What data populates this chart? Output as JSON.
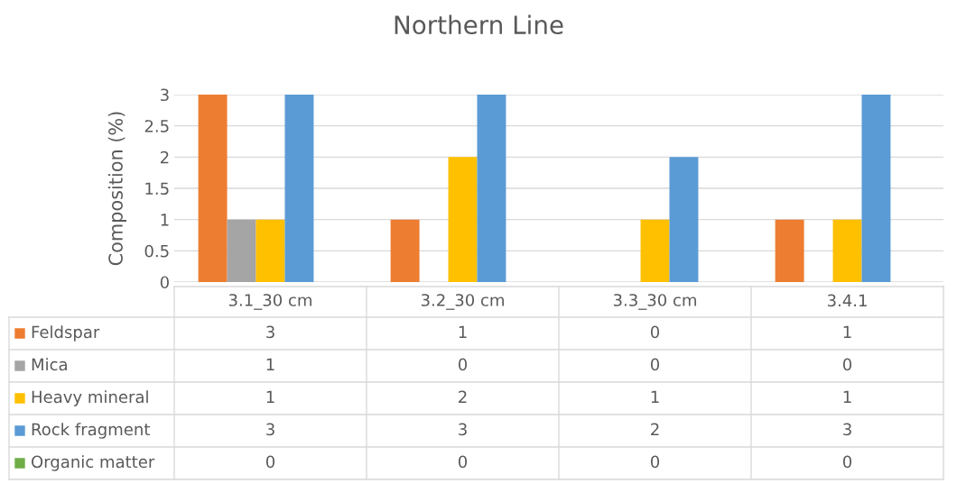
{
  "chart_data": {
    "type": "bar",
    "title": "Northern Line",
    "ylabel": "Composition (%)",
    "categories": [
      "3.1_30 cm",
      "3.2_30 cm",
      "3.3_30 cm",
      "3.4.1"
    ],
    "series": [
      {
        "name": "Feldspar",
        "color": "#ed7d31",
        "values": [
          3,
          1,
          0,
          1
        ]
      },
      {
        "name": "Mica",
        "color": "#a5a5a5",
        "values": [
          1,
          0,
          0,
          0
        ]
      },
      {
        "name": "Heavy mineral",
        "color": "#ffc000",
        "values": [
          1,
          2,
          1,
          1
        ]
      },
      {
        "name": "Rock fragment",
        "color": "#5b9bd5",
        "values": [
          3,
          3,
          2,
          3
        ]
      },
      {
        "name": "Organic matter",
        "color": "#70ad47",
        "values": [
          0,
          0,
          0,
          0
        ]
      }
    ],
    "ylim": [
      0,
      3
    ],
    "yticks": [
      0,
      0.5,
      1,
      1.5,
      2,
      2.5,
      3
    ],
    "grid": "y",
    "legend": "bottom",
    "data_labels": true
  }
}
